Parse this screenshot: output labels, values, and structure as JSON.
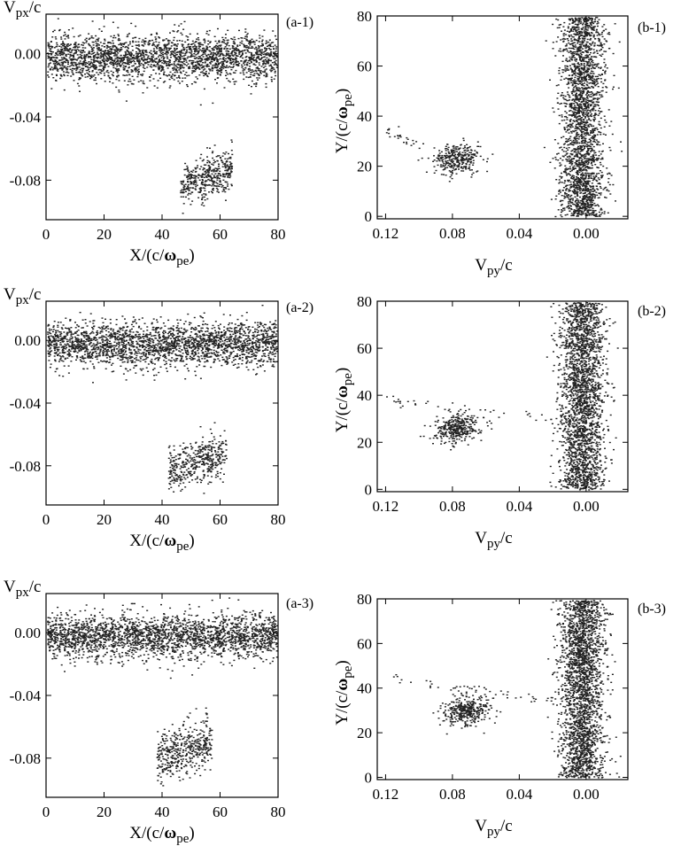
{
  "chart_data": [
    {
      "type": "scatter",
      "panel_label": "(a-1)",
      "xlabel": "X/(c/ωpe)",
      "ylabel": "Vpx/c",
      "xlim": [
        0,
        80
      ],
      "ylim": [
        -0.105,
        0.025
      ],
      "x_ticks": [
        "0",
        "20",
        "40",
        "60",
        "80"
      ],
      "y_ticks": [
        "0.00",
        "-0.04",
        "-0.08"
      ],
      "clusters": [
        {
          "shape": "band",
          "x": [
            0,
            80
          ],
          "y_center": -0.002,
          "y_spread": 0.013,
          "count": 2400
        },
        {
          "shape": "blob",
          "x": [
            46,
            64
          ],
          "y_center": -0.078,
          "y_spread": 0.013,
          "count": 420
        }
      ]
    },
    {
      "type": "scatter",
      "panel_label": "(b-1)",
      "xlabel": "Vpy/c",
      "ylabel": "Y/(c/ωpe)",
      "xlim": [
        0.125,
        -0.025
      ],
      "ylim": [
        -1,
        80
      ],
      "x_ticks": [
        "0.12",
        "0.08",
        "0.04",
        "0.00"
      ],
      "y_ticks": [
        "80",
        "60",
        "40",
        "20",
        "0"
      ],
      "clusters": [
        {
          "shape": "vband",
          "x_center": 0.003,
          "x_spread": 0.012,
          "y": [
            0,
            80
          ],
          "count": 2400
        },
        {
          "shape": "blob",
          "x_center": 0.078,
          "x_spread": 0.014,
          "y_center": 23,
          "y_spread": 6,
          "count": 320
        },
        {
          "shape": "tail",
          "x": [
            0.12,
            0.095
          ],
          "y": [
            35,
            26
          ],
          "count": 25
        }
      ]
    },
    {
      "type": "scatter",
      "panel_label": "(a-2)",
      "xlabel": "X/(c/ωpe)",
      "ylabel": "Vpx/c",
      "xlim": [
        0,
        80
      ],
      "ylim": [
        -0.105,
        0.025
      ],
      "x_ticks": [
        "0",
        "20",
        "40",
        "60",
        "80"
      ],
      "y_ticks": [
        "0.00",
        "-0.04",
        "-0.08"
      ],
      "clusters": [
        {
          "shape": "band",
          "x": [
            0,
            80
          ],
          "y_center": -0.002,
          "y_spread": 0.013,
          "count": 2400
        },
        {
          "shape": "blob",
          "x": [
            42,
            62
          ],
          "y_center": -0.077,
          "y_spread": 0.014,
          "count": 420
        }
      ]
    },
    {
      "type": "scatter",
      "panel_label": "(b-2)",
      "xlabel": "Vpy/c",
      "ylabel": "Y/(c/ωpe)",
      "xlim": [
        0.125,
        -0.025
      ],
      "ylim": [
        -1,
        80
      ],
      "x_ticks": [
        "0.12",
        "0.08",
        "0.04",
        "0.00"
      ],
      "y_ticks": [
        "80",
        "60",
        "40",
        "20",
        "0"
      ],
      "clusters": [
        {
          "shape": "vband",
          "x_center": 0.003,
          "x_spread": 0.012,
          "y": [
            0,
            80
          ],
          "count": 2400
        },
        {
          "shape": "blob",
          "x_center": 0.078,
          "x_spread": 0.014,
          "y_center": 26,
          "y_spread": 6,
          "count": 340
        },
        {
          "shape": "tail",
          "x": [
            0.12,
            0.02
          ],
          "y": [
            38,
            30
          ],
          "count": 40
        }
      ]
    },
    {
      "type": "scatter",
      "panel_label": "(a-3)",
      "xlabel": "X/(c/ωpe)",
      "ylabel": "Vpx/c",
      "xlim": [
        0,
        80
      ],
      "ylim": [
        -0.105,
        0.025
      ],
      "x_ticks": [
        "0",
        "20",
        "40",
        "60",
        "80"
      ],
      "y_ticks": [
        "0.00",
        "-0.04",
        "-0.08"
      ],
      "clusters": [
        {
          "shape": "band",
          "x": [
            0,
            80
          ],
          "y_center": -0.002,
          "y_spread": 0.013,
          "count": 2400
        },
        {
          "shape": "blob",
          "x": [
            38,
            57
          ],
          "y_center": -0.075,
          "y_spread": 0.016,
          "count": 440
        }
      ]
    },
    {
      "type": "scatter",
      "panel_label": "(b-3)",
      "xlabel": "Vpy/c",
      "ylabel": "Y/(c/ωpe)",
      "xlim": [
        0.125,
        -0.025
      ],
      "ylim": [
        -1,
        80
      ],
      "x_ticks": [
        "0.12",
        "0.08",
        "0.04",
        "0.00"
      ],
      "y_ticks": [
        "80",
        "60",
        "40",
        "20",
        "0"
      ],
      "clusters": [
        {
          "shape": "vband",
          "x_center": 0.003,
          "x_spread": 0.012,
          "y": [
            0,
            80
          ],
          "count": 2400
        },
        {
          "shape": "blob",
          "x_center": 0.072,
          "x_spread": 0.014,
          "y_center": 30,
          "y_spread": 6,
          "count": 360
        },
        {
          "shape": "tail",
          "x": [
            0.12,
            0.02
          ],
          "y": [
            46,
            34
          ],
          "count": 50
        }
      ]
    }
  ]
}
